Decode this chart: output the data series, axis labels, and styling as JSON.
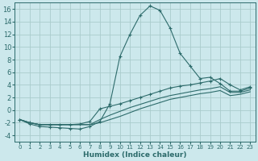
{
  "xlabel": "Humidex (Indice chaleur)",
  "bg_color": "#cce8ec",
  "grid_color": "#aacccc",
  "line_color": "#2d6b6b",
  "xlim": [
    -0.5,
    23.5
  ],
  "ylim": [
    -5,
    17
  ],
  "xticks": [
    0,
    1,
    2,
    3,
    4,
    5,
    6,
    7,
    8,
    9,
    10,
    11,
    12,
    13,
    14,
    15,
    16,
    17,
    18,
    19,
    20,
    21,
    22,
    23
  ],
  "yticks": [
    -4,
    -2,
    0,
    2,
    4,
    6,
    8,
    10,
    12,
    14,
    16
  ],
  "lines": [
    {
      "x": [
        0,
        1,
        2,
        3,
        4,
        5,
        6,
        7,
        8,
        9,
        10,
        11,
        12,
        13,
        14,
        15,
        16,
        17,
        18,
        19,
        20,
        21,
        22,
        23
      ],
      "y": [
        -1.5,
        -2.2,
        -2.6,
        -2.7,
        -2.8,
        -2.9,
        -3.0,
        -2.6,
        -1.8,
        1.0,
        8.5,
        12.0,
        15.0,
        16.5,
        15.8,
        13.0,
        9.0,
        7.0,
        5.0,
        5.2,
        4.2,
        3.0,
        3.0,
        3.5
      ],
      "marker": true
    },
    {
      "x": [
        0,
        1,
        2,
        3,
        4,
        5,
        6,
        7,
        8,
        9,
        10,
        11,
        12,
        13,
        14,
        15,
        16,
        17,
        18,
        19,
        20,
        21,
        22,
        23
      ],
      "y": [
        -1.5,
        -2.0,
        -2.3,
        -2.3,
        -2.3,
        -2.3,
        -2.2,
        -1.8,
        0.2,
        0.6,
        1.0,
        1.5,
        2.0,
        2.5,
        3.0,
        3.5,
        3.8,
        4.0,
        4.3,
        4.6,
        5.0,
        4.0,
        3.2,
        3.7
      ],
      "marker": true
    },
    {
      "x": [
        0,
        1,
        2,
        3,
        4,
        5,
        6,
        7,
        8,
        9,
        10,
        11,
        12,
        13,
        14,
        15,
        16,
        17,
        18,
        19,
        20,
        21,
        22,
        23
      ],
      "y": [
        -1.5,
        -2.0,
        -2.3,
        -2.3,
        -2.3,
        -2.3,
        -2.3,
        -2.3,
        -1.5,
        -0.8,
        -0.2,
        0.4,
        0.9,
        1.4,
        1.9,
        2.3,
        2.6,
        2.9,
        3.2,
        3.4,
        3.7,
        2.8,
        2.8,
        3.2
      ],
      "marker": false
    },
    {
      "x": [
        0,
        1,
        2,
        3,
        4,
        5,
        6,
        7,
        8,
        9,
        10,
        11,
        12,
        13,
        14,
        15,
        16,
        17,
        18,
        19,
        20,
        21,
        22,
        23
      ],
      "y": [
        -1.5,
        -2.0,
        -2.3,
        -2.3,
        -2.3,
        -2.3,
        -2.3,
        -2.3,
        -2.0,
        -1.5,
        -1.0,
        -0.4,
        0.2,
        0.7,
        1.2,
        1.7,
        2.0,
        2.3,
        2.6,
        2.8,
        3.1,
        2.3,
        2.5,
        2.9
      ],
      "marker": false
    }
  ]
}
